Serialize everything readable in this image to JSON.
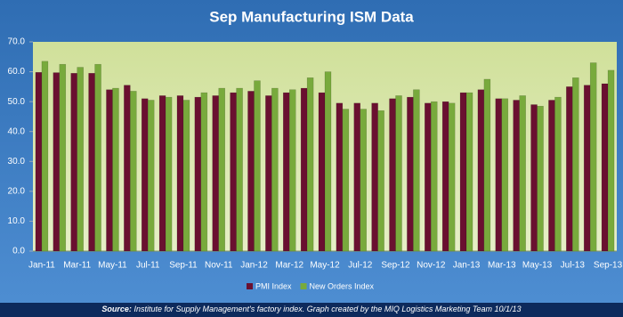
{
  "chart_data": {
    "type": "bar",
    "title": "Sep Manufacturing ISM Data",
    "categories": [
      "Jan-11",
      null,
      "Mar-11",
      null,
      "May-11",
      null,
      "Jul-11",
      null,
      "Sep-11",
      null,
      "Nov-11",
      null,
      "Jan-12",
      null,
      "Mar-12",
      null,
      "May-12",
      null,
      "Jul-12",
      null,
      "Sep-12",
      null,
      "Nov-12",
      null,
      "Jan-13",
      null,
      "Mar-13",
      null,
      "May-13",
      null,
      "Jul-13",
      null,
      "Sep-13"
    ],
    "series": [
      {
        "name": "PMI Index",
        "color": "#6a1030",
        "values": [
          59.8,
          59.7,
          59.5,
          59.5,
          54,
          55.5,
          51,
          52,
          52,
          51.5,
          52,
          53,
          53.5,
          52,
          53,
          54.5,
          53,
          49.5,
          49.5,
          49.5,
          51,
          51.5,
          49.5,
          50,
          53,
          54,
          51,
          50.5,
          49,
          50.5,
          55,
          55.5,
          56
        ]
      },
      {
        "name": "New Orders Index",
        "color": "#78aa3c",
        "values": [
          63.5,
          62.5,
          61.5,
          62.5,
          54.5,
          53.5,
          50.5,
          51.5,
          50.5,
          53,
          54.5,
          54.5,
          57,
          54.5,
          54,
          58,
          60,
          47.5,
          47.5,
          47,
          52,
          54,
          50,
          49.5,
          53,
          57.5,
          51,
          52,
          48.5,
          51.5,
          58,
          63,
          60.5
        ]
      }
    ],
    "ylim": [
      0,
      70
    ],
    "yticks": [
      {
        "value": 0,
        "label": "0.0"
      },
      {
        "value": 10,
        "label": "10.0"
      },
      {
        "value": 20,
        "label": "20.0"
      },
      {
        "value": 30,
        "label": "30.0"
      },
      {
        "value": 40,
        "label": "40.0"
      },
      {
        "value": 50,
        "label": "50.0"
      },
      {
        "value": 60,
        "label": "60.0"
      },
      {
        "value": 70,
        "label": "70.0"
      }
    ],
    "grid": false,
    "legend": "bottom",
    "source_label": "Source:",
    "source": "Institute for Supply Management's factory index. Graph created by the MIQ Logistics Marketing Team 10/1/13"
  }
}
